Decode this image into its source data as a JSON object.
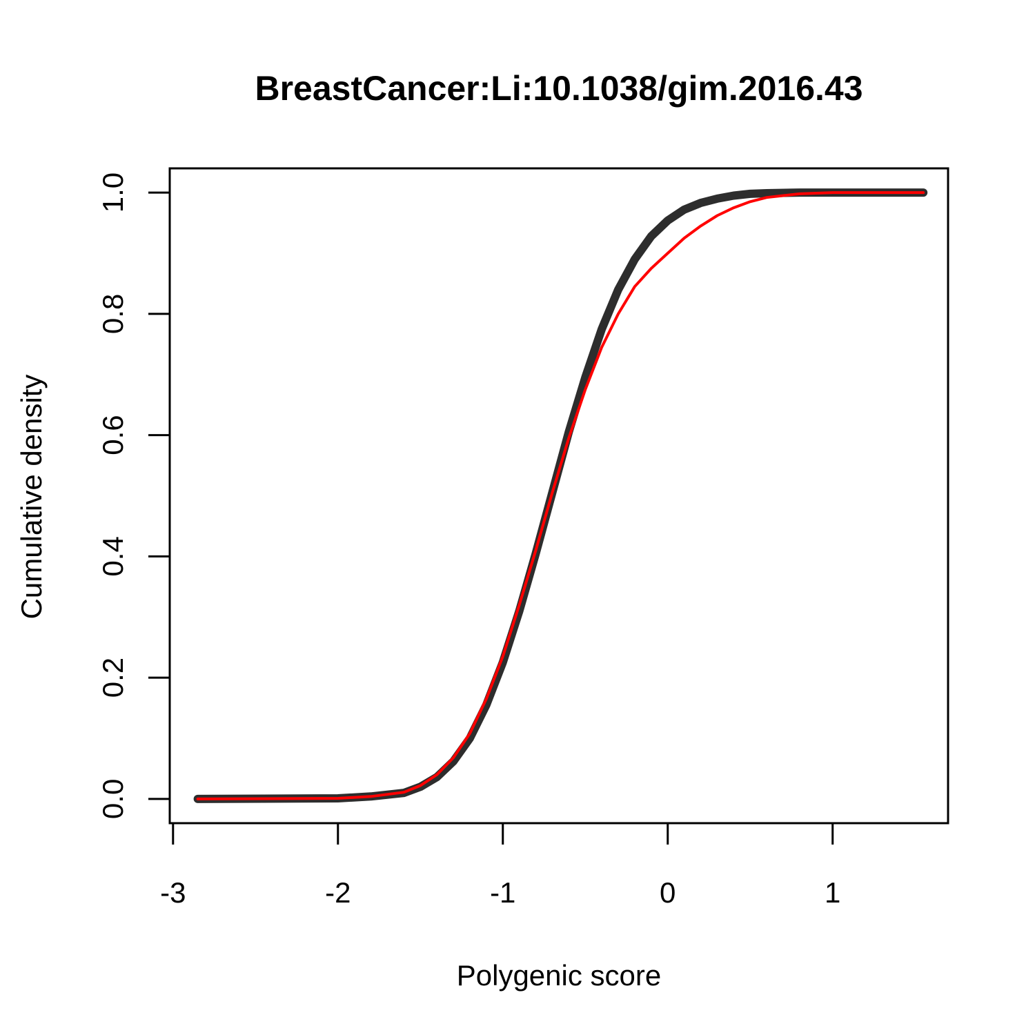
{
  "chart_data": {
    "type": "line",
    "title": "BreastCancer:Li:10.1038/gim.2016.43",
    "xlabel": "Polygenic score",
    "ylabel": "Cumulative density",
    "xlim": [
      -3.02,
      1.7
    ],
    "ylim": [
      -0.04,
      1.04
    ],
    "x_ticks": [
      -3,
      -2,
      -1,
      0,
      1
    ],
    "x_tick_labels": [
      "-3",
      "-2",
      "-1",
      "0",
      "1"
    ],
    "y_ticks": [
      0.0,
      0.2,
      0.4,
      0.6,
      0.8,
      1.0
    ],
    "y_tick_labels": [
      "0.0",
      "0.2",
      "0.4",
      "0.6",
      "0.8",
      "1.0"
    ],
    "grid": false,
    "series": [
      {
        "color": "#222222",
        "style": "thick-band",
        "x": [
          -2.85,
          -2.0,
          -1.8,
          -1.6,
          -1.5,
          -1.4,
          -1.3,
          -1.2,
          -1.1,
          -1.0,
          -0.9,
          -0.8,
          -0.7,
          -0.6,
          -0.5,
          -0.4,
          -0.3,
          -0.2,
          -0.1,
          0.0,
          0.1,
          0.2,
          0.3,
          0.4,
          0.5,
          0.6,
          0.8,
          1.0,
          1.55
        ],
        "y": [
          0.0,
          0.001,
          0.004,
          0.01,
          0.02,
          0.036,
          0.062,
          0.1,
          0.155,
          0.225,
          0.31,
          0.405,
          0.505,
          0.605,
          0.695,
          0.775,
          0.84,
          0.89,
          0.928,
          0.954,
          0.972,
          0.983,
          0.99,
          0.995,
          0.998,
          0.999,
          1.0,
          1.0,
          1.0
        ]
      },
      {
        "color": "#ff0000",
        "style": "line",
        "x": [
          -2.85,
          -2.0,
          -1.8,
          -1.6,
          -1.5,
          -1.4,
          -1.3,
          -1.2,
          -1.1,
          -1.0,
          -0.9,
          -0.8,
          -0.7,
          -0.6,
          -0.5,
          -0.4,
          -0.3,
          -0.2,
          -0.1,
          0.0,
          0.1,
          0.2,
          0.3,
          0.4,
          0.5,
          0.6,
          0.7,
          0.8,
          0.9,
          1.0,
          1.2,
          1.55
        ],
        "y": [
          0.0,
          0.001,
          0.004,
          0.011,
          0.022,
          0.04,
          0.068,
          0.108,
          0.165,
          0.235,
          0.32,
          0.41,
          0.505,
          0.595,
          0.675,
          0.745,
          0.8,
          0.845,
          0.875,
          0.9,
          0.925,
          0.945,
          0.962,
          0.975,
          0.985,
          0.992,
          0.995,
          0.998,
          0.999,
          1.0,
          1.0,
          1.0
        ]
      }
    ]
  }
}
